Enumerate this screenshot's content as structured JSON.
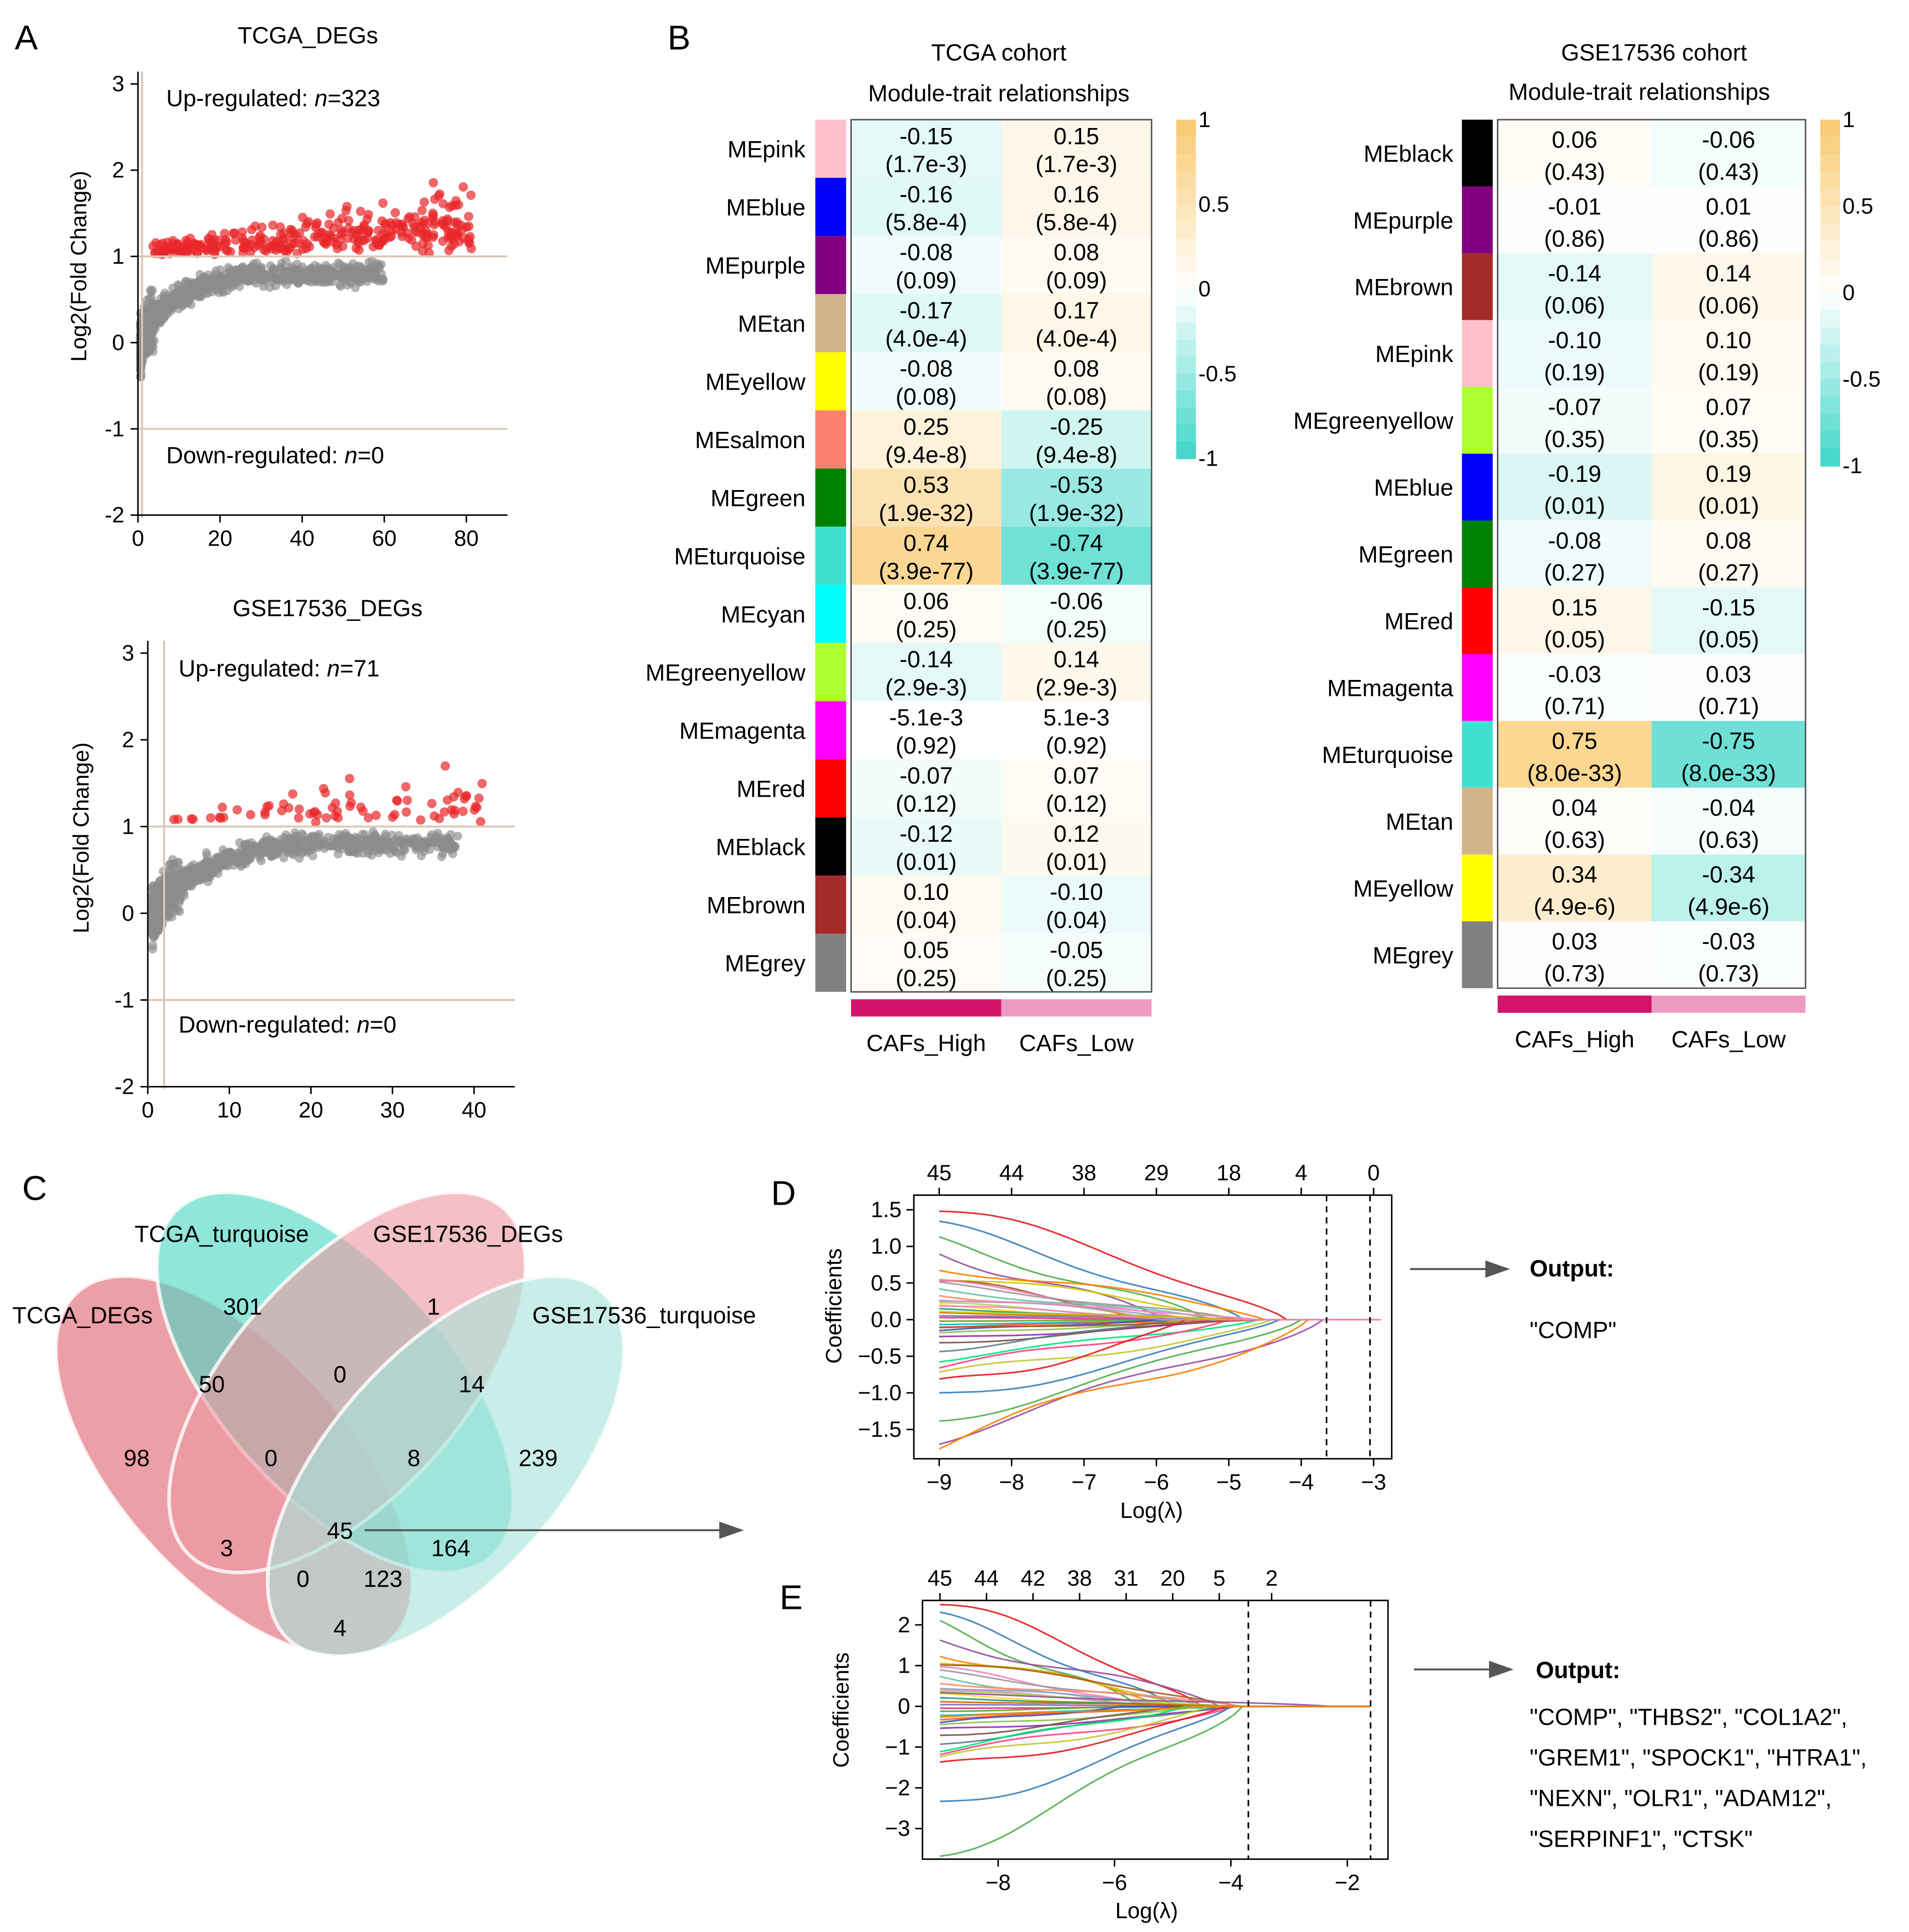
{
  "panels": {
    "A": "A",
    "B": "B",
    "C": "C",
    "D": "D",
    "E": "E"
  },
  "colors": {
    "up_point": "#e8262a",
    "base_point": "#8c8c8c",
    "threshold_line": "#dcc8b4",
    "heat_pos": "#f9c96e",
    "heat_neg": "#3dd6c8",
    "caf_high": "#d4146b",
    "caf_low": "#ee9bc4"
  },
  "chart_data": [
    {
      "id": "tcga_volcano",
      "type": "scatter",
      "title": "TCGA_DEGs",
      "ylabel": "Log2(Fold Change)",
      "xlim": [
        0,
        90
      ],
      "ylim": [
        -2,
        3
      ],
      "xticks": [
        "0",
        "20",
        "40",
        "60",
        "80"
      ],
      "yticks": [
        "-2",
        "-1",
        "0",
        "1",
        "2",
        "3"
      ],
      "thresholds": [
        1,
        -1
      ],
      "vline": 1,
      "up_label_prefix": "Up-regulated: ",
      "up_n": "n",
      "up_count": "=323",
      "down_label_prefix": "Down-regulated: ",
      "down_n": "n",
      "down_count": "=0",
      "x_max_gray": 60,
      "x_max_red": 82,
      "sig_points": 323
    },
    {
      "id": "gse_volcano",
      "type": "scatter",
      "title": "GSE17536_DEGs",
      "ylabel": "Log2(Fold Change)",
      "xlim": [
        0,
        45
      ],
      "ylim": [
        -2,
        3
      ],
      "xticks": [
        "0",
        "10",
        "20",
        "30",
        "40"
      ],
      "yticks": [
        "-2",
        "-1",
        "0",
        "1",
        "2",
        "3"
      ],
      "thresholds": [
        1,
        -1
      ],
      "vline": 2,
      "up_label_prefix": "Up-regulated: ",
      "up_n": "n",
      "up_count": "=71",
      "down_label_prefix": "Down-regulated: ",
      "down_n": "n",
      "down_count": "=0",
      "x_max_gray": 38,
      "x_max_red": 42,
      "sig_points": 71
    },
    {
      "id": "tcga_heatmap",
      "type": "heatmap",
      "title": "TCGA cohort",
      "subtitle": "Module-trait relationships",
      "columns": [
        "CAFs_High",
        "CAFs_Low"
      ],
      "colorbar_ticks": [
        "1",
        "0.5",
        "0",
        "-0.5",
        "-1"
      ],
      "modules": [
        {
          "name": "MEpink",
          "color": "#ffc0cb",
          "high": "-0.15",
          "high_p": "(1.7e-3)",
          "low": "0.15",
          "low_p": "(1.7e-3)"
        },
        {
          "name": "MEblue",
          "color": "#0000ff",
          "high": "-0.16",
          "high_p": "(5.8e-4)",
          "low": "0.16",
          "low_p": "(5.8e-4)"
        },
        {
          "name": "MEpurple",
          "color": "#800080",
          "high": "-0.08",
          "high_p": "(0.09)",
          "low": "0.08",
          "low_p": "(0.09)"
        },
        {
          "name": "MEtan",
          "color": "#d2b48c",
          "high": "-0.17",
          "high_p": "(4.0e-4)",
          "low": "0.17",
          "low_p": "(4.0e-4)"
        },
        {
          "name": "MEyellow",
          "color": "#ffff00",
          "high": "-0.08",
          "high_p": "(0.08)",
          "low": "0.08",
          "low_p": "(0.08)"
        },
        {
          "name": "MEsalmon",
          "color": "#fa8072",
          "high": "0.25",
          "high_p": "(9.4e-8)",
          "low": "-0.25",
          "low_p": "(9.4e-8)"
        },
        {
          "name": "MEgreen",
          "color": "#008000",
          "high": "0.53",
          "high_p": "(1.9e-32)",
          "low": "-0.53",
          "low_p": "(1.9e-32)"
        },
        {
          "name": "MEturquoise",
          "color": "#40e0d0",
          "high": "0.74",
          "high_p": "(3.9e-77)",
          "low": "-0.74",
          "low_p": "(3.9e-77)"
        },
        {
          "name": "MEcyan",
          "color": "#00ffff",
          "high": "0.06",
          "high_p": "(0.25)",
          "low": "-0.06",
          "low_p": "(0.25)"
        },
        {
          "name": "MEgreenyellow",
          "color": "#adff2f",
          "high": "-0.14",
          "high_p": "(2.9e-3)",
          "low": "0.14",
          "low_p": "(2.9e-3)"
        },
        {
          "name": "MEmagenta",
          "color": "#ff00ff",
          "high": "-5.1e-3",
          "high_p": "(0.92)",
          "low": "5.1e-3",
          "low_p": "(0.92)"
        },
        {
          "name": "MEred",
          "color": "#ff0000",
          "high": "-0.07",
          "high_p": "(0.12)",
          "low": "0.07",
          "low_p": "(0.12)"
        },
        {
          "name": "MEblack",
          "color": "#000000",
          "high": "-0.12",
          "high_p": "(0.01)",
          "low": "0.12",
          "low_p": "(0.01)"
        },
        {
          "name": "MEbrown",
          "color": "#a52a2a",
          "high": "0.10",
          "high_p": "(0.04)",
          "low": "-0.10",
          "low_p": "(0.04)"
        },
        {
          "name": "MEgrey",
          "color": "#808080",
          "high": "0.05",
          "high_p": "(0.25)",
          "low": "-0.05",
          "low_p": "(0.25)"
        }
      ]
    },
    {
      "id": "gse_heatmap",
      "type": "heatmap",
      "title": "GSE17536 cohort",
      "subtitle": "Module-trait relationships",
      "columns": [
        "CAFs_High",
        "CAFs_Low"
      ],
      "colorbar_ticks": [
        "1",
        "0.5",
        "0",
        "-0.5",
        "-1"
      ],
      "modules": [
        {
          "name": "MEblack",
          "color": "#000000",
          "high": "0.06",
          "high_p": "(0.43)",
          "low": "-0.06",
          "low_p": "(0.43)"
        },
        {
          "name": "MEpurple",
          "color": "#800080",
          "high": "-0.01",
          "high_p": "(0.86)",
          "low": "0.01",
          "low_p": "(0.86)"
        },
        {
          "name": "MEbrown",
          "color": "#a52a2a",
          "high": "-0.14",
          "high_p": "(0.06)",
          "low": "0.14",
          "low_p": "(0.06)"
        },
        {
          "name": "MEpink",
          "color": "#ffc0cb",
          "high": "-0.10",
          "high_p": "(0.19)",
          "low": "0.10",
          "low_p": "(0.19)"
        },
        {
          "name": "MEgreenyellow",
          "color": "#adff2f",
          "high": "-0.07",
          "high_p": "(0.35)",
          "low": "0.07",
          "low_p": "(0.35)"
        },
        {
          "name": "MEblue",
          "color": "#0000ff",
          "high": "-0.19",
          "high_p": "(0.01)",
          "low": "0.19",
          "low_p": "(0.01)"
        },
        {
          "name": "MEgreen",
          "color": "#008000",
          "high": "-0.08",
          "high_p": "(0.27)",
          "low": "0.08",
          "low_p": "(0.27)"
        },
        {
          "name": "MEred",
          "color": "#ff0000",
          "high": "0.15",
          "high_p": "(0.05)",
          "low": "-0.15",
          "low_p": "(0.05)"
        },
        {
          "name": "MEmagenta",
          "color": "#ff00ff",
          "high": "-0.03",
          "high_p": "(0.71)",
          "low": "0.03",
          "low_p": "(0.71)"
        },
        {
          "name": "MEturquoise",
          "color": "#40e0d0",
          "high": "0.75",
          "high_p": "(8.0e-33)",
          "low": "-0.75",
          "low_p": "(8.0e-33)"
        },
        {
          "name": "MEtan",
          "color": "#d2b48c",
          "high": "0.04",
          "high_p": "(0.63)",
          "low": "-0.04",
          "low_p": "(0.63)"
        },
        {
          "name": "MEyellow",
          "color": "#ffff00",
          "high": "0.34",
          "high_p": "(4.9e-6)",
          "low": "-0.34",
          "low_p": "(4.9e-6)"
        },
        {
          "name": "MEgrey",
          "color": "#808080",
          "high": "0.03",
          "high_p": "(0.73)",
          "low": "-0.03",
          "low_p": "(0.73)"
        }
      ]
    },
    {
      "id": "venn",
      "type": "venn",
      "sets": [
        {
          "name": "TCGA_DEGs",
          "color": "#e06470"
        },
        {
          "name": "TCGA_turquoise",
          "color": "#4dd6c4"
        },
        {
          "name": "GSE17536_DEGs",
          "color": "#ee9aa2"
        },
        {
          "name": "GSE17536_turquoise",
          "color": "#a8e4dc"
        }
      ],
      "region_values": [
        "301",
        "1",
        "50",
        "0",
        "14",
        "98",
        "0",
        "8",
        "239",
        "45",
        "164",
        "3",
        "0",
        "123",
        "4"
      ]
    },
    {
      "id": "lasso_tcga",
      "type": "line",
      "xlabel": "Log(λ)",
      "ylabel": "Coefficients",
      "xlim": [
        -9.35,
        -2.75
      ],
      "ylim": [
        -1.9,
        1.7
      ],
      "xticks": [
        -9,
        -8,
        -7,
        -6,
        -5,
        -4,
        -3
      ],
      "yticks": [
        -1.5,
        -1.0,
        -0.5,
        0.0,
        0.5,
        1.0,
        1.5
      ],
      "top_ticks": [
        {
          "x": -9,
          "label": "45"
        },
        {
          "x": -8,
          "label": "44"
        },
        {
          "x": -7,
          "label": "38"
        },
        {
          "x": -6,
          "label": "29"
        },
        {
          "x": -5,
          "label": "18"
        },
        {
          "x": -4,
          "label": "4"
        },
        {
          "x": -3,
          "label": "0"
        }
      ],
      "vlines": [
        -3.65,
        -3.05
      ],
      "x_start": -9,
      "x_end": -2.9,
      "starts": [
        1.48,
        1.22,
        1.02,
        0.88,
        0.74,
        0.62,
        0.55,
        0.5,
        0.46,
        0.4,
        0.35,
        0.3,
        0.27,
        0.22,
        0.18,
        0.14,
        0.1,
        0.06,
        0.03,
        -0.02,
        -0.06,
        -0.1,
        -0.15,
        -0.2,
        -0.26,
        -0.32,
        -0.4,
        -0.52,
        -0.64,
        -0.78,
        -0.92,
        -1.05,
        -1.3,
        -1.52,
        -1.66,
        0.12,
        -0.12,
        0.2
      ],
      "ends": [
        -4.2,
        -4.8,
        -5.3,
        -5.9,
        -4.5,
        -5.0,
        -6.2,
        -5.6,
        -4.9,
        -5.2,
        -6.0,
        -5.5,
        -4.6,
        -5.8,
        -6.3,
        -5.1,
        -4.8,
        -5.4,
        -6.1,
        -5.7,
        -4.7,
        -5.3,
        -6.0,
        -5.5,
        -4.9,
        -5.2,
        -5.8,
        -4.6,
        -5.0,
        -4.4,
        -5.6,
        -4.3,
        -4.0,
        -3.7,
        -3.9,
        -5.0,
        -4.5,
        -5.9
      ]
    },
    {
      "id": "lasso_gse",
      "type": "line",
      "xlabel": "Log(λ)",
      "ylabel": "Coefficients",
      "xlim": [
        -9.3,
        -1.3
      ],
      "ylim": [
        -3.75,
        2.6
      ],
      "xticks": [
        -8,
        -6,
        -4,
        -2
      ],
      "yticks": [
        -3,
        -2,
        -1,
        0,
        1,
        2
      ],
      "top_ticks": [
        {
          "x": -9,
          "label": "45"
        },
        {
          "x": -8.2,
          "label": "44"
        },
        {
          "x": -7.4,
          "label": "42"
        },
        {
          "x": -6.6,
          "label": "38"
        },
        {
          "x": -5.8,
          "label": "31"
        },
        {
          "x": -5.0,
          "label": "20"
        },
        {
          "x": -4.2,
          "label": "5"
        },
        {
          "x": -3.3,
          "label": "2"
        }
      ],
      "vlines": [
        -3.7,
        -1.6
      ],
      "x_start": -9,
      "x_end": -1.6,
      "starts": [
        2.5,
        2.1,
        1.9,
        1.6,
        1.35,
        1.2,
        1.05,
        0.9,
        0.8,
        0.7,
        0.6,
        0.5,
        0.42,
        0.35,
        0.28,
        0.2,
        0.12,
        0.05,
        -0.05,
        -0.12,
        -0.2,
        -0.3,
        -0.4,
        -0.5,
        -0.6,
        -0.72,
        -0.85,
        -1.0,
        -1.15,
        -1.35,
        -1.55,
        -2.45,
        -3.45,
        0.3,
        -0.25
      ],
      "ends": [
        -4.5,
        -5.0,
        -5.6,
        -4.2,
        -5.2,
        -4.8,
        -3.9,
        -5.4,
        -4.4,
        -5.8,
        -3.8,
        -4.9,
        -5.3,
        -4.1,
        -5.5,
        -4.6,
        -3.85,
        -5.1,
        -4.3,
        -5.7,
        -4.0,
        -4.7,
        -5.9,
        -4.5,
        -3.9,
        -5.0,
        -4.2,
        -4.8,
        -3.95,
        -4.4,
        -4.1,
        -4.0,
        -3.8,
        -2.3,
        -4.6
      ]
    }
  ],
  "outputs": {
    "label": "Output:",
    "d_genes": [
      "\"COMP\""
    ],
    "e_genes": [
      "\"COMP\", \"THBS2\", \"COL1A2\",",
      "\"GREM1\", \"SPOCK1\", \"HTRA1\",",
      "\"NEXN\", \"OLR1\", \"ADAM12\",",
      "\"SERPINF1\", \"CTSK\""
    ]
  }
}
